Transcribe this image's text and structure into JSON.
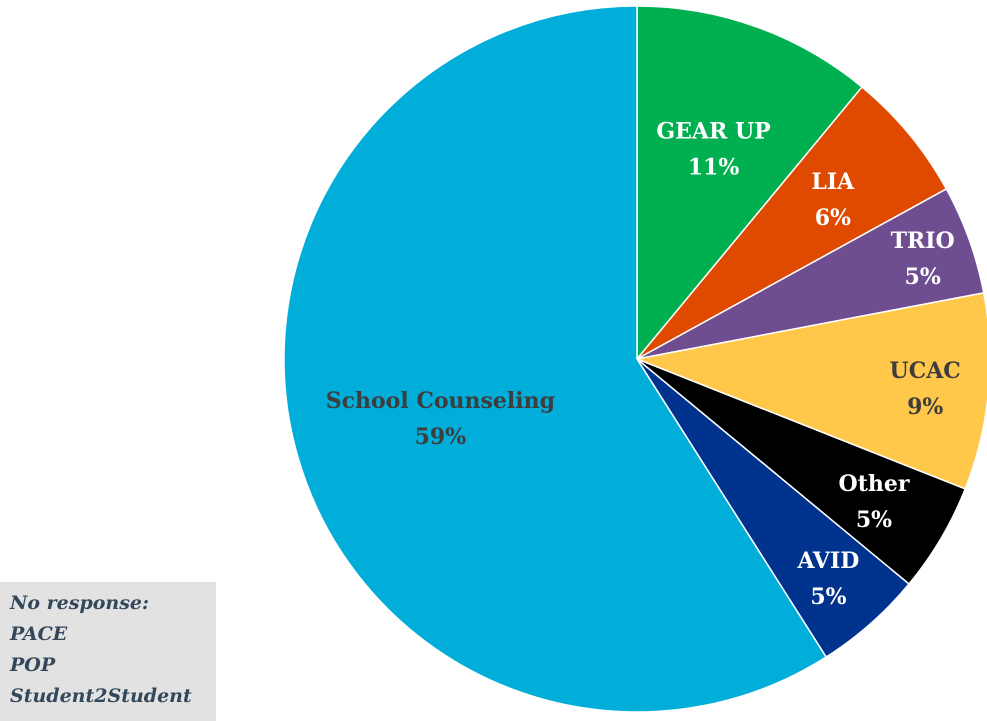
{
  "chart_data": {
    "type": "pie",
    "title": "",
    "slices": [
      {
        "label": "GEAR UP",
        "value": 11,
        "percent_label": "11%",
        "color": "#00b050",
        "label_color": "#ffffff"
      },
      {
        "label": "LIA",
        "value": 6,
        "percent_label": "6%",
        "color": "#e04a00",
        "label_color": "#ffffff"
      },
      {
        "label": "TRIO",
        "value": 5,
        "percent_label": "5%",
        "color": "#6e4d91",
        "label_color": "#ffffff"
      },
      {
        "label": "UCAC",
        "value": 9,
        "percent_label": "9%",
        "color": "#ffc84a",
        "label_color": "#3d3d3d"
      },
      {
        "label": "Other",
        "value": 5,
        "percent_label": "5%",
        "color": "#000000",
        "label_color": "#ffffff"
      },
      {
        "label": "AVID",
        "value": 5,
        "percent_label": "5%",
        "color": "#00338d",
        "label_color": "#ffffff"
      },
      {
        "label": "School Counseling",
        "value": 59,
        "percent_label": "59%",
        "color": "#00aed9",
        "label_color": "#3d3d3d"
      }
    ]
  },
  "note": {
    "heading": "No response:",
    "items": [
      "PACE",
      "POP",
      "Student2Student"
    ]
  }
}
